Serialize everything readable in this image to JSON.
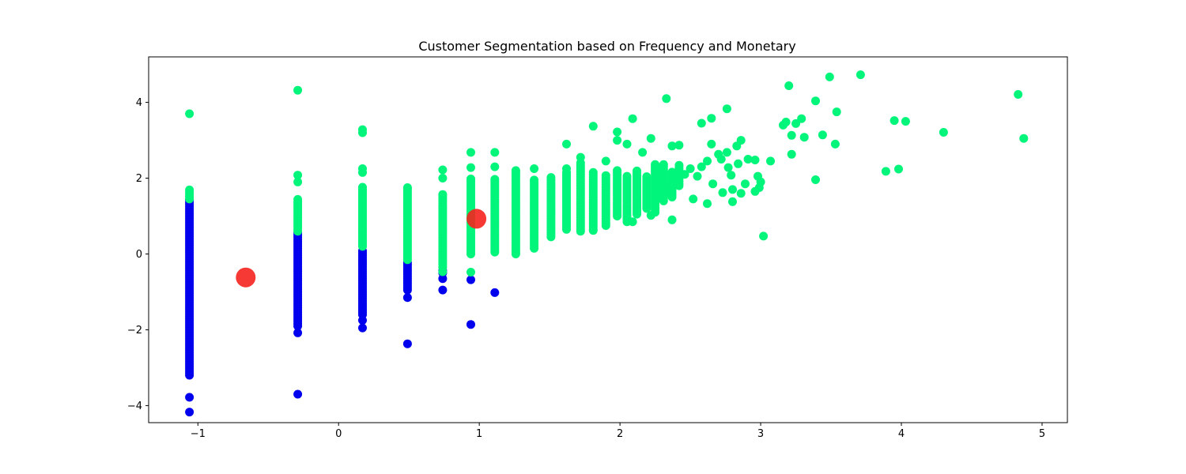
{
  "chart_data": {
    "type": "scatter",
    "title": "Customer Segmentation based on Frequency and Monetary",
    "xlabel": "",
    "ylabel": "",
    "xlim": [
      -1.35,
      5.18
    ],
    "ylim": [
      -4.45,
      5.2
    ],
    "xticks": [
      -1,
      0,
      1,
      2,
      3,
      4,
      5
    ],
    "yticks": [
      -4,
      -2,
      0,
      2,
      4
    ],
    "xtick_labels": [
      "−1",
      "0",
      "1",
      "2",
      "3",
      "4",
      "5"
    ],
    "ytick_labels": [
      "−4",
      "−2",
      "0",
      "2",
      "4"
    ],
    "grid": false,
    "legend": "none",
    "colors": {
      "cluster_0": "#0000ee",
      "cluster_1": "#00f57a",
      "centroid": "#f5231e"
    },
    "clusters": [
      {
        "color": "#0000ee",
        "columns": [
          {
            "x": -1.06,
            "ymin": -3.2,
            "ymax": 1.45
          },
          {
            "x": -0.29,
            "ymin": -1.9,
            "ymax": 0.6
          },
          {
            "x": 0.17,
            "ymin": -1.6,
            "ymax": 0.1
          },
          {
            "x": 0.49,
            "ymin": -0.95,
            "ymax": -0.2
          },
          {
            "x": 0.74,
            "ymin": -0.5,
            "ymax": -0.4
          }
        ],
        "points": [
          {
            "x": -1.06,
            "y": -3.78
          },
          {
            "x": -1.06,
            "y": -4.17
          },
          {
            "x": -0.29,
            "y": -2.08
          },
          {
            "x": -0.29,
            "y": -3.7
          },
          {
            "x": 0.17,
            "y": -1.95
          },
          {
            "x": 0.17,
            "y": -1.75
          },
          {
            "x": 0.49,
            "y": -1.15
          },
          {
            "x": 0.49,
            "y": -2.37
          },
          {
            "x": 0.74,
            "y": -0.65
          },
          {
            "x": 0.74,
            "y": -0.95
          },
          {
            "x": 0.94,
            "y": -0.68
          },
          {
            "x": 0.94,
            "y": -1.86
          },
          {
            "x": 1.11,
            "y": -1.02
          }
        ]
      },
      {
        "color": "#00f57a",
        "columns": [
          {
            "x": -1.06,
            "ymin": 1.45,
            "ymax": 1.7
          },
          {
            "x": -0.29,
            "ymin": 0.6,
            "ymax": 1.45
          },
          {
            "x": 0.17,
            "ymin": 0.2,
            "ymax": 1.8
          },
          {
            "x": 0.49,
            "ymin": -0.15,
            "ymax": 1.75
          },
          {
            "x": 0.74,
            "ymin": -0.35,
            "ymax": 1.6
          },
          {
            "x": 0.94,
            "ymin": 0.0,
            "ymax": 2.0
          },
          {
            "x": 1.11,
            "ymin": 0.05,
            "ymax": 2.0
          },
          {
            "x": 1.26,
            "ymin": 0.0,
            "ymax": 2.2
          },
          {
            "x": 1.39,
            "ymin": 0.15,
            "ymax": 2.0
          },
          {
            "x": 1.51,
            "ymin": 0.45,
            "ymax": 2.0
          },
          {
            "x": 1.62,
            "ymin": 0.65,
            "ymax": 2.2
          },
          {
            "x": 1.72,
            "ymin": 0.6,
            "ymax": 2.4
          },
          {
            "x": 1.81,
            "ymin": 0.65,
            "ymax": 2.2
          },
          {
            "x": 1.9,
            "ymin": 0.75,
            "ymax": 2.1
          },
          {
            "x": 1.98,
            "ymin": 1.0,
            "ymax": 2.2
          },
          {
            "x": 2.05,
            "ymin": 0.85,
            "ymax": 2.1
          },
          {
            "x": 2.12,
            "ymin": 1.05,
            "ymax": 2.2
          },
          {
            "x": 2.19,
            "ymin": 1.2,
            "ymax": 2.05
          },
          {
            "x": 2.25,
            "ymin": 1.1,
            "ymax": 2.4
          },
          {
            "x": 2.31,
            "ymin": 1.4,
            "ymax": 2.4
          },
          {
            "x": 2.37,
            "ymin": 1.5,
            "ymax": 2.2
          },
          {
            "x": 2.42,
            "ymin": 1.8,
            "ymax": 2.35
          }
        ],
        "points": [
          {
            "x": -1.06,
            "y": 3.7
          },
          {
            "x": -0.29,
            "y": 4.32
          },
          {
            "x": -0.29,
            "y": 2.08
          },
          {
            "x": -0.29,
            "y": 1.9
          },
          {
            "x": 0.17,
            "y": 3.28
          },
          {
            "x": 0.17,
            "y": 3.2
          },
          {
            "x": 0.17,
            "y": 2.25
          },
          {
            "x": 0.17,
            "y": 2.15
          },
          {
            "x": 0.49,
            "y": 1.75
          },
          {
            "x": 0.74,
            "y": 2.22
          },
          {
            "x": 0.74,
            "y": 2.0
          },
          {
            "x": 0.74,
            "y": -0.47
          },
          {
            "x": 0.94,
            "y": 2.68
          },
          {
            "x": 0.94,
            "y": 2.28
          },
          {
            "x": 0.94,
            "y": -0.48
          },
          {
            "x": 1.11,
            "y": 2.68
          },
          {
            "x": 1.11,
            "y": 2.3
          },
          {
            "x": 1.26,
            "y": 2.2
          },
          {
            "x": 1.39,
            "y": 2.25
          },
          {
            "x": 1.51,
            "y": 2.02
          },
          {
            "x": 1.62,
            "y": 2.9
          },
          {
            "x": 1.62,
            "y": 2.25
          },
          {
            "x": 1.72,
            "y": 2.55
          },
          {
            "x": 1.81,
            "y": 3.37
          },
          {
            "x": 1.81,
            "y": 0.62
          },
          {
            "x": 1.9,
            "y": 2.45
          },
          {
            "x": 1.98,
            "y": 3.22
          },
          {
            "x": 1.98,
            "y": 3.0
          },
          {
            "x": 2.05,
            "y": 2.9
          },
          {
            "x": 2.09,
            "y": 3.57
          },
          {
            "x": 2.09,
            "y": 0.85
          },
          {
            "x": 2.16,
            "y": 2.68
          },
          {
            "x": 2.22,
            "y": 3.05
          },
          {
            "x": 2.22,
            "y": 1.02
          },
          {
            "x": 2.33,
            "y": 4.1
          },
          {
            "x": 2.37,
            "y": 2.85
          },
          {
            "x": 2.37,
            "y": 0.9
          },
          {
            "x": 2.42,
            "y": 2.87
          },
          {
            "x": 2.46,
            "y": 2.1
          },
          {
            "x": 2.5,
            "y": 2.25
          },
          {
            "x": 2.52,
            "y": 1.45
          },
          {
            "x": 2.55,
            "y": 2.05
          },
          {
            "x": 2.58,
            "y": 3.45
          },
          {
            "x": 2.58,
            "y": 2.3
          },
          {
            "x": 2.62,
            "y": 1.33
          },
          {
            "x": 2.62,
            "y": 2.45
          },
          {
            "x": 2.65,
            "y": 3.58
          },
          {
            "x": 2.65,
            "y": 2.9
          },
          {
            "x": 2.66,
            "y": 1.85
          },
          {
            "x": 2.7,
            "y": 2.63
          },
          {
            "x": 2.72,
            "y": 2.5
          },
          {
            "x": 2.73,
            "y": 1.62
          },
          {
            "x": 2.76,
            "y": 2.68
          },
          {
            "x": 2.76,
            "y": 3.83
          },
          {
            "x": 2.77,
            "y": 2.28
          },
          {
            "x": 2.79,
            "y": 2.08
          },
          {
            "x": 2.8,
            "y": 1.38
          },
          {
            "x": 2.8,
            "y": 1.7
          },
          {
            "x": 2.83,
            "y": 2.85
          },
          {
            "x": 2.84,
            "y": 2.38
          },
          {
            "x": 2.86,
            "y": 3.0
          },
          {
            "x": 2.86,
            "y": 1.6
          },
          {
            "x": 2.89,
            "y": 1.85
          },
          {
            "x": 2.91,
            "y": 2.5
          },
          {
            "x": 2.96,
            "y": 2.48
          },
          {
            "x": 2.96,
            "y": 1.65
          },
          {
            "x": 2.98,
            "y": 2.05
          },
          {
            "x": 3.0,
            "y": 1.9
          },
          {
            "x": 2.99,
            "y": 1.75
          },
          {
            "x": 3.02,
            "y": 0.47
          },
          {
            "x": 3.07,
            "y": 2.45
          },
          {
            "x": 3.16,
            "y": 3.4
          },
          {
            "x": 3.18,
            "y": 3.48
          },
          {
            "x": 3.2,
            "y": 4.44
          },
          {
            "x": 3.22,
            "y": 3.13
          },
          {
            "x": 3.22,
            "y": 2.63
          },
          {
            "x": 3.25,
            "y": 3.44
          },
          {
            "x": 3.29,
            "y": 3.57
          },
          {
            "x": 3.31,
            "y": 3.08
          },
          {
            "x": 3.39,
            "y": 4.04
          },
          {
            "x": 3.39,
            "y": 1.96
          },
          {
            "x": 3.44,
            "y": 3.14
          },
          {
            "x": 3.49,
            "y": 4.67
          },
          {
            "x": 3.53,
            "y": 2.9
          },
          {
            "x": 3.54,
            "y": 3.75
          },
          {
            "x": 3.71,
            "y": 4.73
          },
          {
            "x": 3.89,
            "y": 2.18
          },
          {
            "x": 3.95,
            "y": 3.52
          },
          {
            "x": 3.98,
            "y": 2.24
          },
          {
            "x": 4.03,
            "y": 3.5
          },
          {
            "x": 4.3,
            "y": 3.21
          },
          {
            "x": 4.83,
            "y": 4.21
          },
          {
            "x": 4.87,
            "y": 3.05
          }
        ]
      }
    ],
    "centroids": [
      {
        "x": -0.66,
        "y": -0.62
      },
      {
        "x": 0.98,
        "y": 0.93
      }
    ]
  }
}
